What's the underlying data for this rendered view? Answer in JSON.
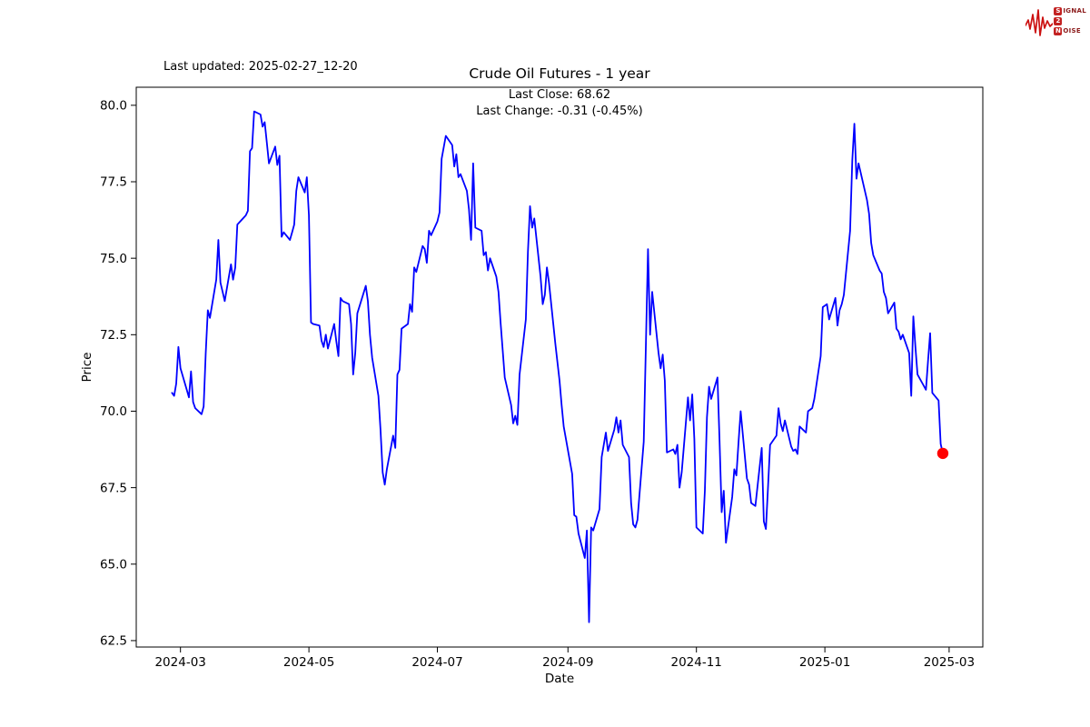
{
  "header": {
    "last_updated": "Last updated: 2025-02-27_12-20"
  },
  "logo": {
    "s_box": "S",
    "s_rest": "IGNAL",
    "mid_box": "2",
    "n_box": "N",
    "n_rest": "OISE",
    "brand_color": "#c32222",
    "waveform_color": "#cc1111"
  },
  "chart_data": {
    "type": "line",
    "title": "Crude Oil Futures - 1 year",
    "xlabel": "Date",
    "ylabel": "Price",
    "annotations": {
      "last_close_label": "Last Close: 68.62",
      "last_change_label": "Last Change: -0.31 (-0.45%)",
      "last_close": 68.62,
      "last_change": -0.31,
      "last_change_pct": -0.45
    },
    "legend": "none",
    "grid": false,
    "line_color": "#0000ff",
    "line_width": 1.8,
    "marker_color": "#ff0000",
    "spine_color": "#000000",
    "xlim": [
      "2024-02-09",
      "2025-03-17"
    ],
    "ylim": [
      62.29,
      80.59
    ],
    "yticks": [
      62.5,
      65.0,
      67.5,
      70.0,
      72.5,
      75.0,
      77.5,
      80.0
    ],
    "xticks": [
      {
        "date": "2024-03-01",
        "label": "2024-03"
      },
      {
        "date": "2024-05-01",
        "label": "2024-05"
      },
      {
        "date": "2024-07-01",
        "label": "2024-07"
      },
      {
        "date": "2024-09-01",
        "label": "2024-09"
      },
      {
        "date": "2024-11-01",
        "label": "2024-11"
      },
      {
        "date": "2025-01-01",
        "label": "2025-01"
      },
      {
        "date": "2025-03-01",
        "label": "2025-03"
      }
    ],
    "series": [
      [
        "2024-02-26",
        70.6
      ],
      [
        "2024-02-27",
        70.5
      ],
      [
        "2024-02-28",
        70.9
      ],
      [
        "2024-02-29",
        72.1
      ],
      [
        "2024-03-01",
        71.4
      ],
      [
        "2024-03-04",
        70.7
      ],
      [
        "2024-03-05",
        70.45
      ],
      [
        "2024-03-06",
        71.3
      ],
      [
        "2024-03-07",
        70.3
      ],
      [
        "2024-03-08",
        70.1
      ],
      [
        "2024-03-11",
        69.9
      ],
      [
        "2024-03-12",
        70.15
      ],
      [
        "2024-03-13",
        71.9
      ],
      [
        "2024-03-14",
        73.3
      ],
      [
        "2024-03-15",
        73.05
      ],
      [
        "2024-03-18",
        74.3
      ],
      [
        "2024-03-19",
        75.6
      ],
      [
        "2024-03-20",
        74.2
      ],
      [
        "2024-03-21",
        73.9
      ],
      [
        "2024-03-22",
        73.6
      ],
      [
        "2024-03-25",
        74.8
      ],
      [
        "2024-03-26",
        74.3
      ],
      [
        "2024-03-27",
        74.7
      ],
      [
        "2024-03-28",
        76.1
      ],
      [
        "2024-04-01",
        76.4
      ],
      [
        "2024-04-02",
        76.55
      ],
      [
        "2024-04-03",
        78.5
      ],
      [
        "2024-04-04",
        78.6
      ],
      [
        "2024-04-05",
        79.8
      ],
      [
        "2024-04-08",
        79.7
      ],
      [
        "2024-04-09",
        79.3
      ],
      [
        "2024-04-10",
        79.45
      ],
      [
        "2024-04-11",
        78.8
      ],
      [
        "2024-04-12",
        78.1
      ],
      [
        "2024-04-15",
        78.65
      ],
      [
        "2024-04-16",
        78.05
      ],
      [
        "2024-04-17",
        78.35
      ],
      [
        "2024-04-18",
        75.7
      ],
      [
        "2024-04-19",
        75.85
      ],
      [
        "2024-04-22",
        75.6
      ],
      [
        "2024-04-23",
        75.85
      ],
      [
        "2024-04-24",
        76.1
      ],
      [
        "2024-04-25",
        77.2
      ],
      [
        "2024-04-26",
        77.65
      ],
      [
        "2024-04-29",
        77.15
      ],
      [
        "2024-04-30",
        77.65
      ],
      [
        "2024-05-01",
        76.4
      ],
      [
        "2024-05-02",
        72.9
      ],
      [
        "2024-05-03",
        72.85
      ],
      [
        "2024-05-06",
        72.8
      ],
      [
        "2024-05-07",
        72.3
      ],
      [
        "2024-05-08",
        72.1
      ],
      [
        "2024-05-09",
        72.5
      ],
      [
        "2024-05-10",
        72.05
      ],
      [
        "2024-05-13",
        72.85
      ],
      [
        "2024-05-14",
        72.3
      ],
      [
        "2024-05-15",
        71.8
      ],
      [
        "2024-05-16",
        73.7
      ],
      [
        "2024-05-17",
        73.6
      ],
      [
        "2024-05-20",
        73.5
      ],
      [
        "2024-05-21",
        72.85
      ],
      [
        "2024-05-22",
        71.2
      ],
      [
        "2024-05-23",
        71.9
      ],
      [
        "2024-05-24",
        73.2
      ],
      [
        "2024-05-28",
        74.1
      ],
      [
        "2024-05-29",
        73.6
      ],
      [
        "2024-05-30",
        72.5
      ],
      [
        "2024-05-31",
        71.75
      ],
      [
        "2024-06-03",
        70.5
      ],
      [
        "2024-06-04",
        69.4
      ],
      [
        "2024-06-05",
        68.0
      ],
      [
        "2024-06-06",
        67.6
      ],
      [
        "2024-06-07",
        68.1
      ],
      [
        "2024-06-10",
        69.2
      ],
      [
        "2024-06-11",
        68.8
      ],
      [
        "2024-06-12",
        71.2
      ],
      [
        "2024-06-13",
        71.35
      ],
      [
        "2024-06-14",
        72.7
      ],
      [
        "2024-06-17",
        72.85
      ],
      [
        "2024-06-18",
        73.5
      ],
      [
        "2024-06-19",
        73.25
      ],
      [
        "2024-06-20",
        74.7
      ],
      [
        "2024-06-21",
        74.55
      ],
      [
        "2024-06-24",
        75.4
      ],
      [
        "2024-06-25",
        75.3
      ],
      [
        "2024-06-26",
        74.85
      ],
      [
        "2024-06-27",
        75.9
      ],
      [
        "2024-06-28",
        75.75
      ],
      [
        "2024-07-01",
        76.2
      ],
      [
        "2024-07-02",
        76.5
      ],
      [
        "2024-07-03",
        78.25
      ],
      [
        "2024-07-05",
        79.0
      ],
      [
        "2024-07-08",
        78.7
      ],
      [
        "2024-07-09",
        78.0
      ],
      [
        "2024-07-10",
        78.4
      ],
      [
        "2024-07-11",
        77.65
      ],
      [
        "2024-07-12",
        77.75
      ],
      [
        "2024-07-15",
        77.2
      ],
      [
        "2024-07-16",
        76.6
      ],
      [
        "2024-07-17",
        75.6
      ],
      [
        "2024-07-18",
        78.1
      ],
      [
        "2024-07-19",
        76.0
      ],
      [
        "2024-07-22",
        75.9
      ],
      [
        "2024-07-23",
        75.1
      ],
      [
        "2024-07-24",
        75.2
      ],
      [
        "2024-07-25",
        74.6
      ],
      [
        "2024-07-26",
        75.0
      ],
      [
        "2024-07-29",
        74.4
      ],
      [
        "2024-07-30",
        73.9
      ],
      [
        "2024-07-31",
        72.9
      ],
      [
        "2024-08-01",
        72.0
      ],
      [
        "2024-08-02",
        71.1
      ],
      [
        "2024-08-05",
        70.2
      ],
      [
        "2024-08-06",
        69.6
      ],
      [
        "2024-08-07",
        69.85
      ],
      [
        "2024-08-08",
        69.55
      ],
      [
        "2024-08-09",
        71.2
      ],
      [
        "2024-08-12",
        73.0
      ],
      [
        "2024-08-13",
        75.2
      ],
      [
        "2024-08-14",
        76.7
      ],
      [
        "2024-08-15",
        76.0
      ],
      [
        "2024-08-16",
        76.3
      ],
      [
        "2024-08-19",
        74.4
      ],
      [
        "2024-08-20",
        73.5
      ],
      [
        "2024-08-21",
        73.8
      ],
      [
        "2024-08-22",
        74.7
      ],
      [
        "2024-08-23",
        74.2
      ],
      [
        "2024-08-26",
        72.2
      ],
      [
        "2024-08-27",
        71.6
      ],
      [
        "2024-08-28",
        71.0
      ],
      [
        "2024-08-29",
        70.2
      ],
      [
        "2024-08-30",
        69.5
      ],
      [
        "2024-09-03",
        67.95
      ],
      [
        "2024-09-04",
        66.6
      ],
      [
        "2024-09-05",
        66.55
      ],
      [
        "2024-09-06",
        66.0
      ],
      [
        "2024-09-09",
        65.2
      ],
      [
        "2024-09-10",
        66.1
      ],
      [
        "2024-09-11",
        63.1
      ],
      [
        "2024-09-12",
        66.2
      ],
      [
        "2024-09-13",
        66.1
      ],
      [
        "2024-09-16",
        66.8
      ],
      [
        "2024-09-17",
        68.5
      ],
      [
        "2024-09-18",
        68.9
      ],
      [
        "2024-09-19",
        69.3
      ],
      [
        "2024-09-20",
        68.7
      ],
      [
        "2024-09-23",
        69.4
      ],
      [
        "2024-09-24",
        69.8
      ],
      [
        "2024-09-25",
        69.3
      ],
      [
        "2024-09-26",
        69.7
      ],
      [
        "2024-09-27",
        68.9
      ],
      [
        "2024-09-30",
        68.5
      ],
      [
        "2024-10-01",
        67.0
      ],
      [
        "2024-10-02",
        66.3
      ],
      [
        "2024-10-03",
        66.2
      ],
      [
        "2024-10-04",
        66.45
      ],
      [
        "2024-10-07",
        69.0
      ],
      [
        "2024-10-08",
        72.2
      ],
      [
        "2024-10-09",
        75.3
      ],
      [
        "2024-10-10",
        72.5
      ],
      [
        "2024-10-11",
        73.9
      ],
      [
        "2024-10-14",
        71.9
      ],
      [
        "2024-10-15",
        71.4
      ],
      [
        "2024-10-16",
        71.85
      ],
      [
        "2024-10-17",
        71.0
      ],
      [
        "2024-10-18",
        68.65
      ],
      [
        "2024-10-21",
        68.75
      ],
      [
        "2024-10-22",
        68.6
      ],
      [
        "2024-10-23",
        68.9
      ],
      [
        "2024-10-24",
        67.5
      ],
      [
        "2024-10-25",
        68.0
      ],
      [
        "2024-10-28",
        70.45
      ],
      [
        "2024-10-29",
        69.7
      ],
      [
        "2024-10-30",
        70.55
      ],
      [
        "2024-10-31",
        69.1
      ],
      [
        "2024-11-01",
        66.2
      ],
      [
        "2024-11-04",
        66.0
      ],
      [
        "2024-11-05",
        67.4
      ],
      [
        "2024-11-06",
        69.8
      ],
      [
        "2024-11-07",
        70.8
      ],
      [
        "2024-11-08",
        70.4
      ],
      [
        "2024-11-11",
        71.1
      ],
      [
        "2024-11-12",
        69.0
      ],
      [
        "2024-11-13",
        66.7
      ],
      [
        "2024-11-14",
        67.4
      ],
      [
        "2024-11-15",
        65.7
      ],
      [
        "2024-11-18",
        67.2
      ],
      [
        "2024-11-19",
        68.1
      ],
      [
        "2024-11-20",
        67.9
      ],
      [
        "2024-11-21",
        69.0
      ],
      [
        "2024-11-22",
        70.0
      ],
      [
        "2024-11-25",
        67.8
      ],
      [
        "2024-11-26",
        67.6
      ],
      [
        "2024-11-27",
        67.0
      ],
      [
        "2024-11-29",
        66.9
      ],
      [
        "2024-12-02",
        68.8
      ],
      [
        "2024-12-03",
        66.4
      ],
      [
        "2024-12-04",
        66.15
      ],
      [
        "2024-12-05",
        67.5
      ],
      [
        "2024-12-06",
        68.9
      ],
      [
        "2024-12-09",
        69.2
      ],
      [
        "2024-12-10",
        70.1
      ],
      [
        "2024-12-11",
        69.6
      ],
      [
        "2024-12-12",
        69.35
      ],
      [
        "2024-12-13",
        69.7
      ],
      [
        "2024-12-16",
        68.85
      ],
      [
        "2024-12-17",
        68.7
      ],
      [
        "2024-12-18",
        68.75
      ],
      [
        "2024-12-19",
        68.6
      ],
      [
        "2024-12-20",
        69.5
      ],
      [
        "2024-12-23",
        69.3
      ],
      [
        "2024-12-24",
        70.0
      ],
      [
        "2024-12-26",
        70.1
      ],
      [
        "2024-12-27",
        70.4
      ],
      [
        "2024-12-30",
        71.8
      ],
      [
        "2024-12-31",
        73.4
      ],
      [
        "2025-01-02",
        73.5
      ],
      [
        "2025-01-03",
        73.0
      ],
      [
        "2025-01-06",
        73.7
      ],
      [
        "2025-01-07",
        72.8
      ],
      [
        "2025-01-08",
        73.3
      ],
      [
        "2025-01-09",
        73.5
      ],
      [
        "2025-01-10",
        73.8
      ],
      [
        "2025-01-13",
        75.9
      ],
      [
        "2025-01-14",
        78.2
      ],
      [
        "2025-01-15",
        79.4
      ],
      [
        "2025-01-16",
        77.6
      ],
      [
        "2025-01-17",
        78.1
      ],
      [
        "2025-01-21",
        76.9
      ],
      [
        "2025-01-22",
        76.45
      ],
      [
        "2025-01-23",
        75.5
      ],
      [
        "2025-01-24",
        75.1
      ],
      [
        "2025-01-27",
        74.6
      ],
      [
        "2025-01-28",
        74.5
      ],
      [
        "2025-01-29",
        73.9
      ],
      [
        "2025-01-30",
        73.7
      ],
      [
        "2025-01-31",
        73.2
      ],
      [
        "2025-02-03",
        73.55
      ],
      [
        "2025-02-04",
        72.7
      ],
      [
        "2025-02-05",
        72.6
      ],
      [
        "2025-02-06",
        72.35
      ],
      [
        "2025-02-07",
        72.5
      ],
      [
        "2025-02-10",
        71.9
      ],
      [
        "2025-02-11",
        70.5
      ],
      [
        "2025-02-12",
        73.1
      ],
      [
        "2025-02-13",
        72.1
      ],
      [
        "2025-02-14",
        71.2
      ],
      [
        "2025-02-18",
        70.7
      ],
      [
        "2025-02-19",
        71.65
      ],
      [
        "2025-02-20",
        72.55
      ],
      [
        "2025-02-21",
        70.6
      ],
      [
        "2025-02-24",
        70.35
      ],
      [
        "2025-02-25",
        68.93
      ],
      [
        "2025-02-26",
        68.62
      ]
    ]
  }
}
